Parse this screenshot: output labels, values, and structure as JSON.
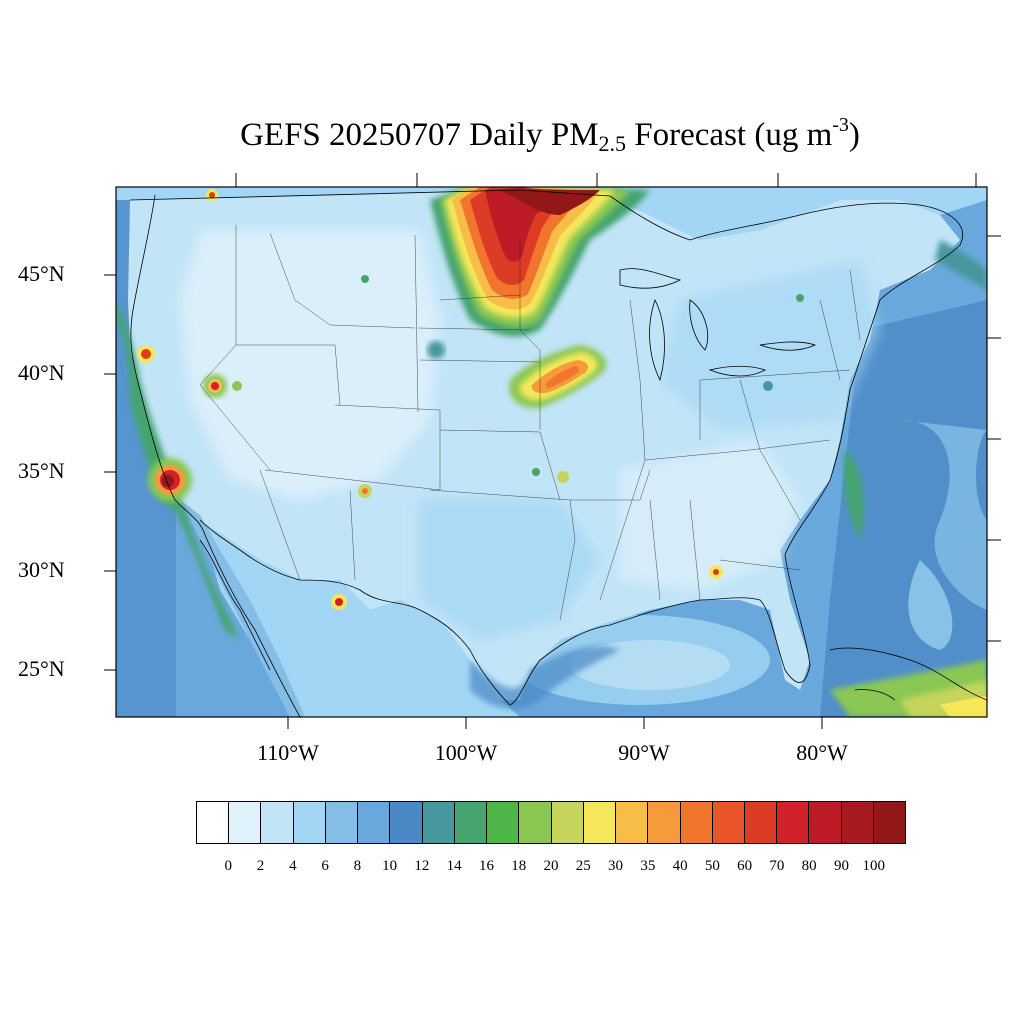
{
  "title": {
    "main": "GEFS 20250707 Daily PM",
    "subscript": "2.5",
    "units_pre": " Forecast (ug m",
    "superscript": "-3",
    "units_post": ")"
  },
  "lat_labels": [
    "45°N",
    "40°N",
    "35°N",
    "30°N",
    "25°N"
  ],
  "lon_labels": [
    "110°W",
    "100°W",
    "90°W",
    "80°W"
  ],
  "colorbar": {
    "labels": [
      "0",
      "2",
      "4",
      "6",
      "8",
      "10",
      "12",
      "14",
      "16",
      "18",
      "20",
      "25",
      "30",
      "35",
      "40",
      "50",
      "60",
      "70",
      "80",
      "90",
      "100"
    ],
    "colors": [
      "#ffffff",
      "#dff1fb",
      "#c1e4f7",
      "#a3d6f4",
      "#84bde6",
      "#69a8dc",
      "#4a88c6",
      "#47989e",
      "#45a46f",
      "#4eb548",
      "#8ac752",
      "#c5d55b",
      "#f6e75a",
      "#f8bd48",
      "#f69a3c",
      "#f2752d",
      "#e9542a",
      "#dc3b25",
      "#d22129",
      "#bd1b25",
      "#a81a20",
      "#921717"
    ]
  },
  "map_legend_ref": "colorbar"
}
